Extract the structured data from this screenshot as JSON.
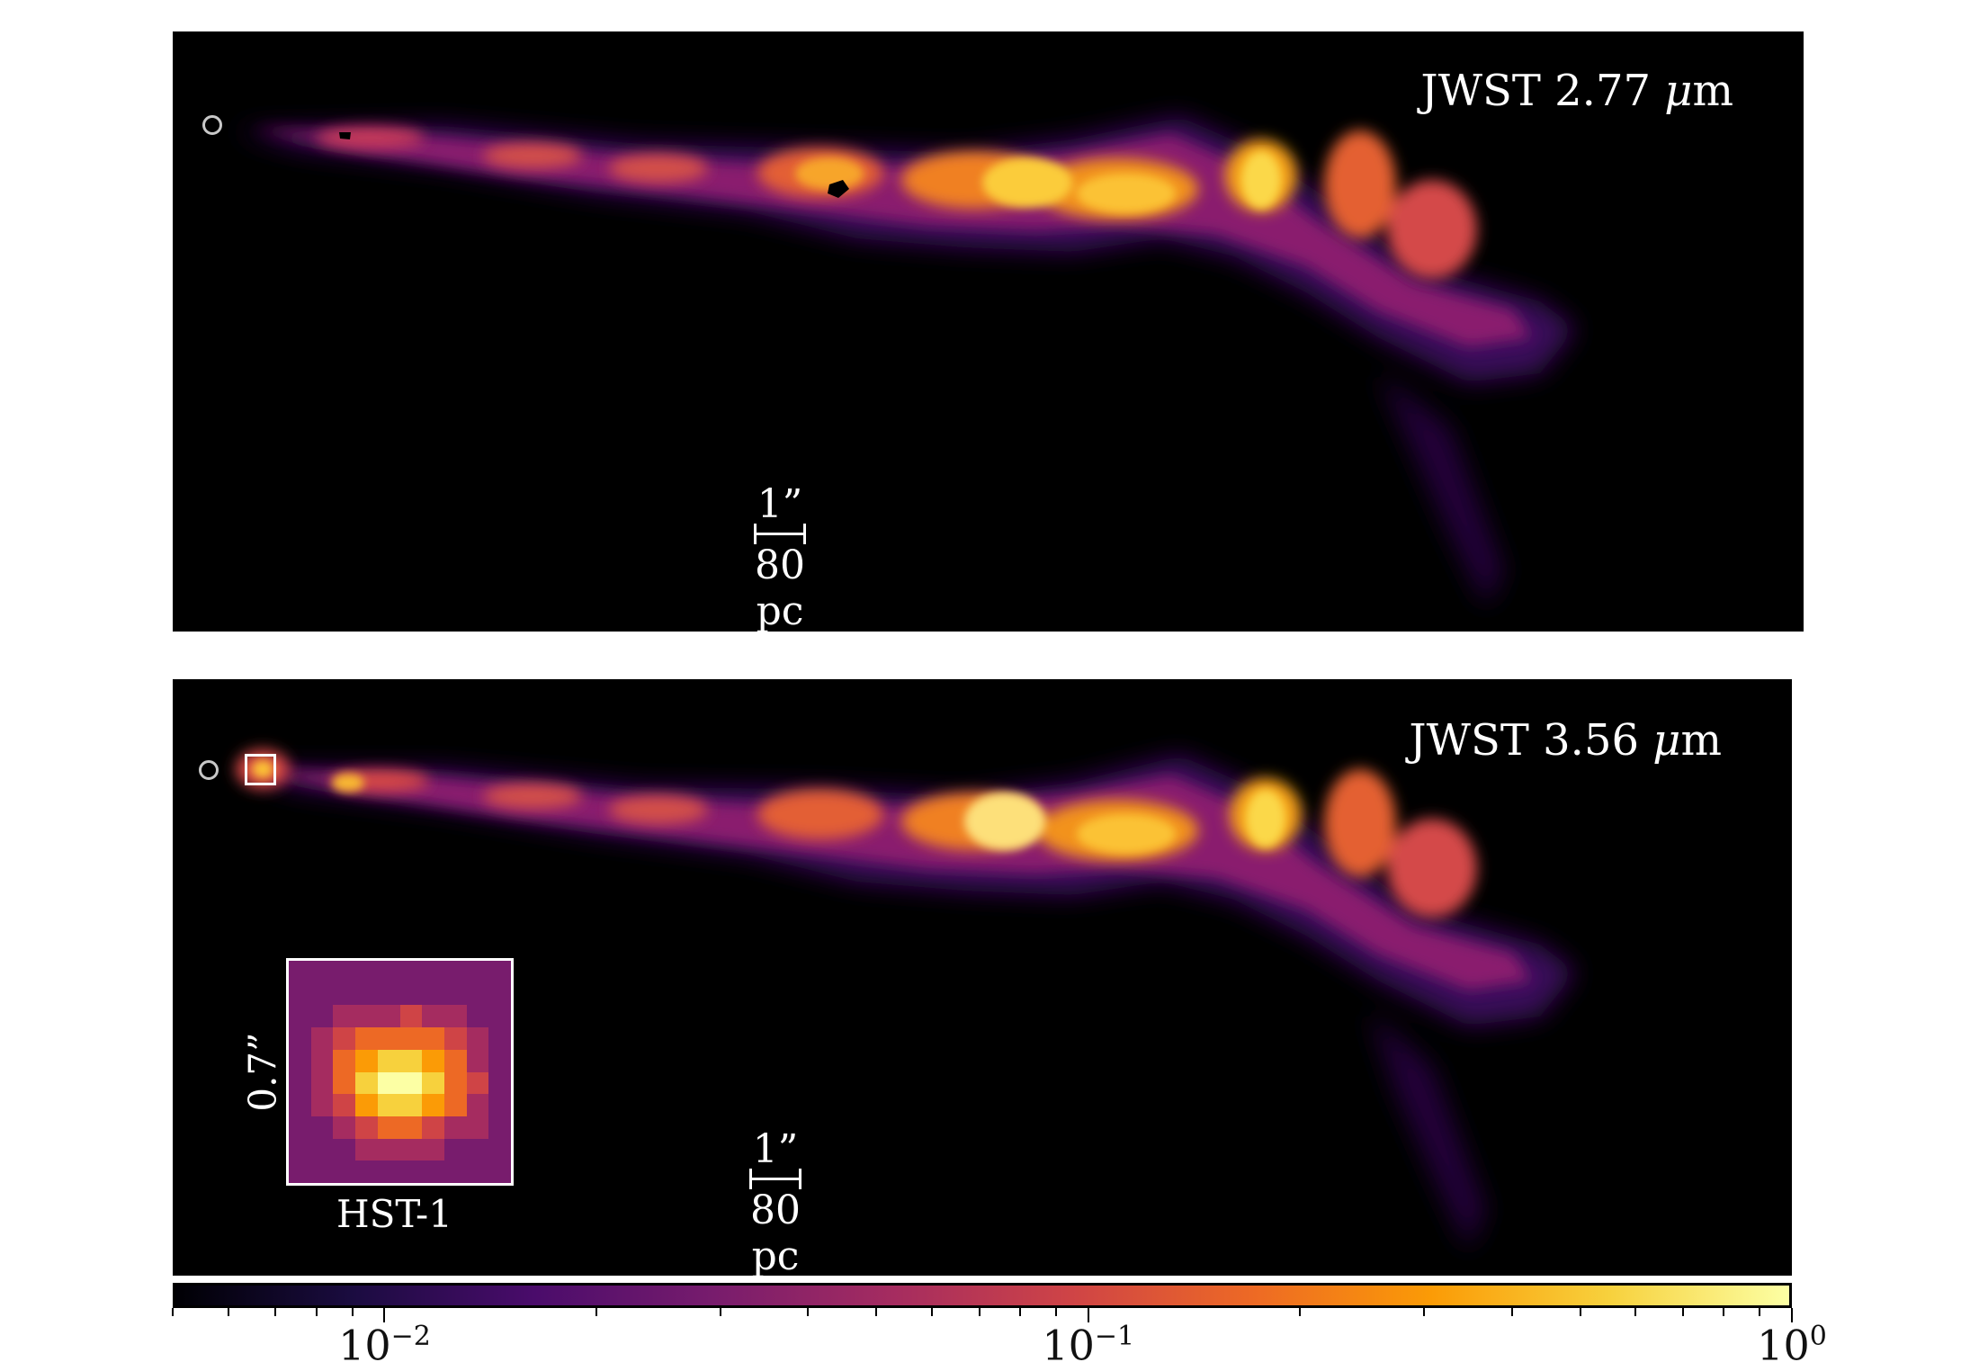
{
  "panels": [
    {
      "label_prefix": "JWST 2.77",
      "label_unit_mu": "μ",
      "label_unit_rest": "m",
      "scalebar_top": "1”",
      "scalebar_bottom": "80 pc"
    },
    {
      "label_prefix": "JWST 3.56",
      "label_unit_mu": "μ",
      "label_unit_rest": "m",
      "scalebar_top": "1”",
      "scalebar_bottom": "80 pc",
      "inset": {
        "side_label": "0.7”",
        "bottom_label": "HST-1"
      }
    }
  ],
  "colorbar": {
    "colormap": "inferno",
    "scale": "log",
    "range": [
      0.005,
      1.0
    ],
    "ticks": [
      {
        "base": "10",
        "exp": "−2",
        "value": 0.01
      },
      {
        "base": "10",
        "exp": "−1",
        "value": 0.1
      },
      {
        "base": "10",
        "exp": "0",
        "value": 1.0
      }
    ]
  }
}
